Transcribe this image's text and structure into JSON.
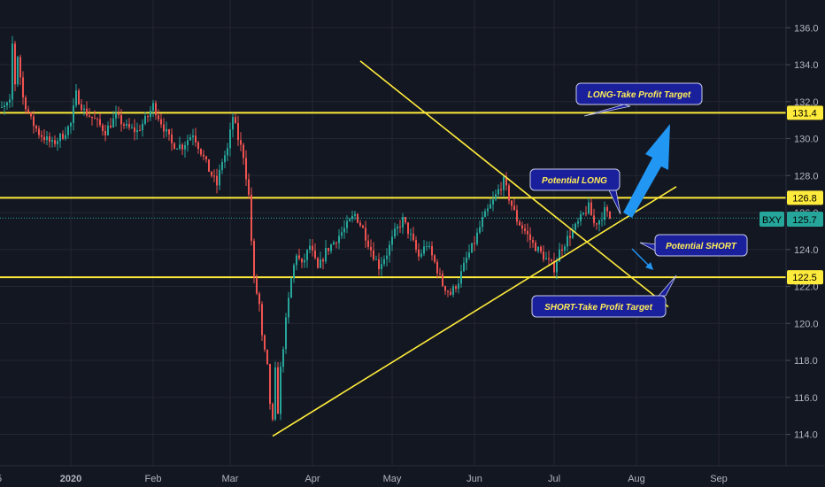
{
  "colors": {
    "background": "#131722",
    "grid": "#242733",
    "axis_text": "#b2b5be",
    "up": "#26a69a",
    "down": "#ef5350",
    "trendline": "#ffeb3b",
    "level_fill": "#ffeb3b",
    "symbol_tag": "#26a69a",
    "annotation_fill": "#1a1f9c",
    "annotation_text": "#ffee58",
    "arrow": "#2196f3"
  },
  "chart_data": {
    "type": "candlestick",
    "symbol": "BXY",
    "last_price": "125.7",
    "y_ticks": [
      "136.0",
      "134.0",
      "132.0",
      "130.0",
      "128.0",
      "126.0",
      "124.0",
      "122.0",
      "120.0",
      "118.0",
      "116.0",
      "114.0"
    ],
    "ylim": [
      112.3,
      137.5
    ],
    "x_ticks": [
      "5",
      "2020",
      "Feb",
      "Mar",
      "Apr",
      "May",
      "Jun",
      "Jul",
      "Aug",
      "Sep"
    ],
    "x_tick_dates": [
      "2019-12-05",
      "2020-01-01",
      "2020-02-01",
      "2020-03-01",
      "2020-04-01",
      "2020-05-01",
      "2020-06-01",
      "2020-07-01",
      "2020-08-01",
      "2020-09-01"
    ],
    "horizontal_levels": [
      {
        "price": 131.4,
        "label": "131.4"
      },
      {
        "price": 126.8,
        "label": "126.8"
      },
      {
        "price": 122.5,
        "label": "122.5"
      }
    ],
    "trendlines": [
      {
        "from": [
          "2020-04-19",
          134.2
        ],
        "to": [
          "2020-08-13",
          120.9
        ]
      },
      {
        "from": [
          "2020-03-17",
          113.9
        ],
        "to": [
          "2020-08-16",
          127.4
        ]
      }
    ],
    "annotations": [
      {
        "text": "LONG-Take Profit Target"
      },
      {
        "text": "Potential LONG"
      },
      {
        "text": "Potential SHORT"
      },
      {
        "text": "SHORT-Take Profit Target"
      }
    ],
    "price_path": [
      [
        "2019-12-01",
        131.3
      ],
      [
        "2019-12-06",
        131.6
      ],
      [
        "2019-12-09",
        131.9
      ],
      [
        "2019-12-10",
        135.1
      ],
      [
        "2019-12-11",
        133.0
      ],
      [
        "2019-12-12",
        134.5
      ],
      [
        "2019-12-14",
        132.2
      ],
      [
        "2019-12-17",
        131.0
      ],
      [
        "2019-12-20",
        130.3
      ],
      [
        "2019-12-25",
        129.7
      ],
      [
        "2019-12-29",
        130.2
      ],
      [
        "2020-01-01",
        130.8
      ],
      [
        "2020-01-03",
        132.4
      ],
      [
        "2020-01-06",
        131.5
      ],
      [
        "2020-01-10",
        131.0
      ],
      [
        "2020-01-14",
        130.4
      ],
      [
        "2020-01-18",
        131.2
      ],
      [
        "2020-01-22",
        130.6
      ],
      [
        "2020-01-26",
        130.4
      ],
      [
        "2020-01-30",
        131.2
      ],
      [
        "2020-02-01",
        131.8
      ],
      [
        "2020-02-04",
        130.9
      ],
      [
        "2020-02-08",
        129.7
      ],
      [
        "2020-02-12",
        129.6
      ],
      [
        "2020-02-16",
        130.3
      ],
      [
        "2020-02-19",
        129.3
      ],
      [
        "2020-02-22",
        128.3
      ],
      [
        "2020-02-25",
        127.5
      ],
      [
        "2020-02-27",
        128.8
      ],
      [
        "2020-02-29",
        129.4
      ],
      [
        "2020-03-02",
        131.2
      ],
      [
        "2020-03-04",
        130.0
      ],
      [
        "2020-03-06",
        129.1
      ],
      [
        "2020-03-08",
        126.9
      ],
      [
        "2020-03-09",
        124.5
      ],
      [
        "2020-03-10",
        122.3
      ],
      [
        "2020-03-12",
        121.0
      ],
      [
        "2020-03-13",
        119.2
      ],
      [
        "2020-03-15",
        117.6
      ],
      [
        "2020-03-16",
        115.7
      ],
      [
        "2020-03-17",
        114.6
      ],
      [
        "2020-03-18",
        117.4
      ],
      [
        "2020-03-19",
        115.3
      ],
      [
        "2020-03-20",
        117.5
      ],
      [
        "2020-03-22",
        120.1
      ],
      [
        "2020-03-24",
        122.4
      ],
      [
        "2020-03-26",
        123.8
      ],
      [
        "2020-03-28",
        123.1
      ],
      [
        "2020-03-31",
        124.2
      ],
      [
        "2020-04-03",
        122.9
      ],
      [
        "2020-04-06",
        123.9
      ],
      [
        "2020-04-09",
        124.4
      ],
      [
        "2020-04-13",
        125.1
      ],
      [
        "2020-04-17",
        125.9
      ],
      [
        "2020-04-20",
        125.1
      ],
      [
        "2020-04-23",
        124.0
      ],
      [
        "2020-04-26",
        123.1
      ],
      [
        "2020-04-29",
        123.8
      ],
      [
        "2020-05-02",
        124.9
      ],
      [
        "2020-05-05",
        125.6
      ],
      [
        "2020-05-08",
        124.7
      ],
      [
        "2020-05-11",
        123.6
      ],
      [
        "2020-05-14",
        124.3
      ],
      [
        "2020-05-17",
        123.3
      ],
      [
        "2020-05-20",
        122.1
      ],
      [
        "2020-05-23",
        121.6
      ],
      [
        "2020-05-26",
        122.3
      ],
      [
        "2020-05-29",
        123.5
      ],
      [
        "2020-06-01",
        124.4
      ],
      [
        "2020-06-04",
        125.6
      ],
      [
        "2020-06-08",
        126.6
      ],
      [
        "2020-06-10",
        127.2
      ],
      [
        "2020-06-12",
        127.7
      ],
      [
        "2020-06-14",
        126.8
      ],
      [
        "2020-06-17",
        125.6
      ],
      [
        "2020-06-20",
        125.0
      ],
      [
        "2020-06-23",
        124.3
      ],
      [
        "2020-06-26",
        123.8
      ],
      [
        "2020-06-29",
        123.3
      ],
      [
        "2020-07-01",
        123.0
      ],
      [
        "2020-07-03",
        123.9
      ],
      [
        "2020-07-06",
        124.6
      ],
      [
        "2020-07-09",
        125.2
      ],
      [
        "2020-07-12",
        125.9
      ],
      [
        "2020-07-14",
        126.3
      ],
      [
        "2020-07-16",
        125.4
      ],
      [
        "2020-07-18",
        125.6
      ],
      [
        "2020-07-20",
        126.1
      ],
      [
        "2020-07-22",
        125.7
      ]
    ]
  }
}
